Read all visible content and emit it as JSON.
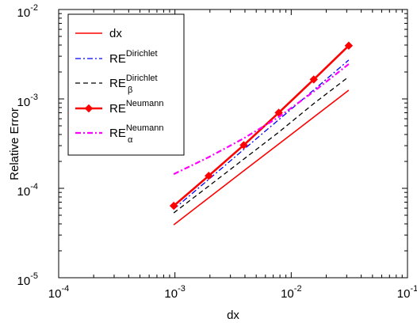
{
  "chart_data": {
    "type": "line",
    "xlabel": "dx",
    "ylabel": "Relative Error",
    "xscale": "log",
    "yscale": "log",
    "xlim": [
      0.0001,
      0.1
    ],
    "ylim": [
      1e-05,
      0.01
    ],
    "grid": false,
    "legend_position": "top-left",
    "x_ticks": [
      {
        "base": "10",
        "exp": "-4",
        "value": 0.0001
      },
      {
        "base": "10",
        "exp": "-3",
        "value": 0.001
      },
      {
        "base": "10",
        "exp": "-2",
        "value": 0.01
      },
      {
        "base": "10",
        "exp": "-1",
        "value": 0.1
      }
    ],
    "y_ticks": [
      {
        "base": "10",
        "exp": "-5",
        "value": 1e-05
      },
      {
        "base": "10",
        "exp": "-4",
        "value": 0.0001
      },
      {
        "base": "10",
        "exp": "-3",
        "value": 0.001
      },
      {
        "base": "10",
        "exp": "-2",
        "value": 0.01
      }
    ],
    "x": [
      0.0009766,
      0.001953,
      0.003906,
      0.007813,
      0.01563,
      0.03125
    ],
    "series": [
      {
        "name": "dx",
        "label_main": "dx",
        "label_sup": "",
        "label_sub": "",
        "color": "#ff0000",
        "dash": "solid",
        "width": 1.6,
        "marker": "none",
        "values": [
          3.91e-05,
          7.83e-05,
          0.000157,
          0.000313,
          0.000626,
          0.00125
        ]
      },
      {
        "name": "RE Dirichlet",
        "label_main": "RE",
        "label_sup": "Dirichlet",
        "label_sub": "",
        "color": "#0000ff",
        "dash": "dashdot",
        "width": 1.3,
        "marker": "none",
        "values": [
          5.85e-05,
          0.000126,
          0.000272,
          0.000585,
          0.00126,
          0.00272
        ]
      },
      {
        "name": "RE β Dirichlet",
        "label_main": "RE",
        "label_sup": "Dirichlet",
        "label_sub": "β",
        "color": "#000000",
        "dash": "dashed",
        "width": 1.3,
        "marker": "none",
        "values": [
          5.31e-05,
          0.000106,
          0.000212,
          0.000424,
          0.000887,
          0.00177
        ]
      },
      {
        "name": "RE Neumann",
        "label_main": "RE",
        "label_sup": "Neumann",
        "label_sub": "",
        "color": "#ff0000",
        "dash": "solid",
        "width": 2.6,
        "marker": "diamond",
        "values": [
          6.37e-05,
          0.000138,
          0.000304,
          0.000701,
          0.00165,
          0.00394
        ]
      },
      {
        "name": "RE α Neumann",
        "label_main": "RE",
        "label_sup": "Neumann",
        "label_sub": "α",
        "color": "#ff00ff",
        "dash": "dashdot",
        "width": 2.2,
        "marker": "none",
        "values": [
          0.000144,
          0.000223,
          0.000362,
          0.000626,
          0.00121,
          0.00245
        ]
      }
    ]
  }
}
